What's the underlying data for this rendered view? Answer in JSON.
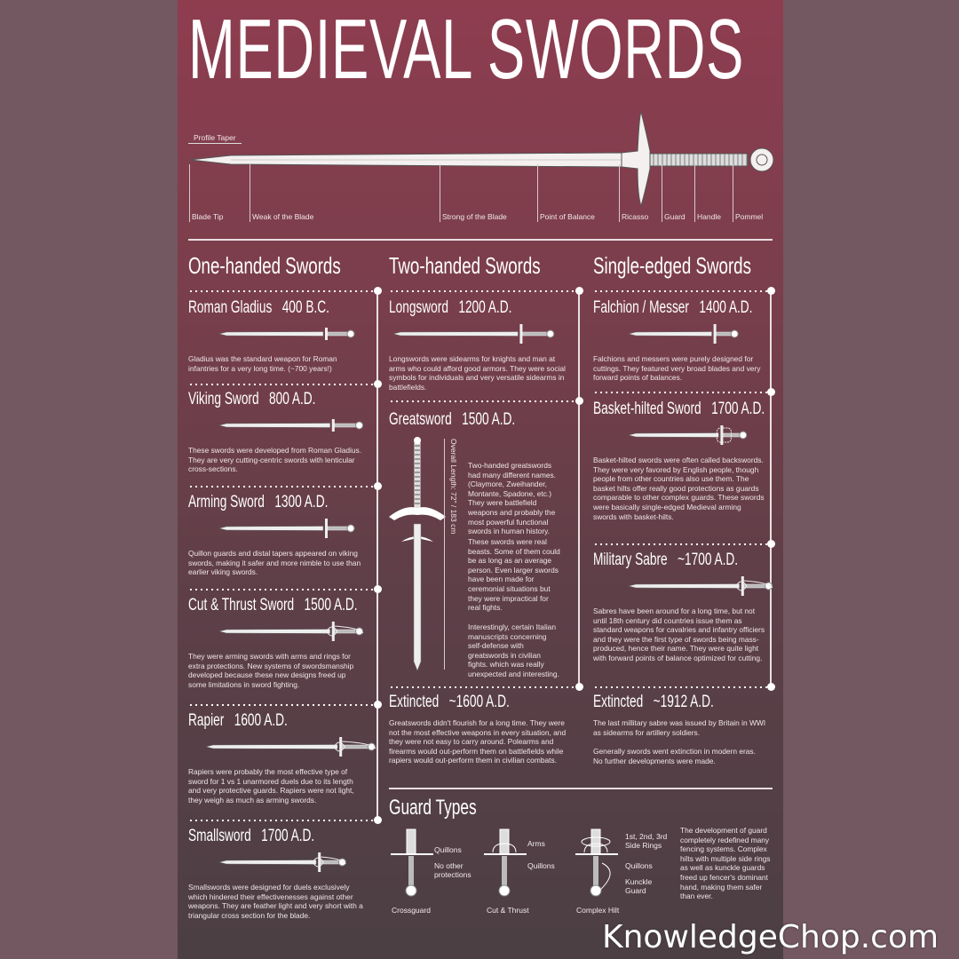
{
  "title": "MEDIEVAL SWORDS",
  "profile": {
    "taper_label": "Profile Taper",
    "parts": [
      "Blade  Tip",
      "Weak of the Blade",
      "Strong of the Blade",
      "Point of Balance",
      "Ricasso",
      "Guard",
      "Handle",
      "Pommel"
    ]
  },
  "columns": [
    {
      "heading": "One-handed Swords",
      "entries": [
        {
          "name": "Roman Gladius",
          "date": "400 B.C.",
          "desc": "Gladius was the standard weapon for Roman infantries for a very long time. (~700 years!)"
        },
        {
          "name": "Viking Sword",
          "date": "800 A.D.",
          "desc": "These swords were developed from Roman Gladius. They are very cutting-centric swords with lenticular cross-sections."
        },
        {
          "name": "Arming Sword",
          "date": "1300 A.D.",
          "desc": "Quillon guards and distal tapers appeared on viking swords, making it safer and more nimble to use than earlier viking swords."
        },
        {
          "name": "Cut & Thrust Sword",
          "date": "1500 A.D.",
          "desc": "They were arming swords with arms and rings for extra protections. New systems of swordsmanship developed because these new designs freed up some limitations in sword fighting."
        },
        {
          "name": "Rapier",
          "date": "1600 A.D.",
          "desc": "Rapiers were probably the most effective type of sword for 1 vs 1 unarmored duels due to its length and very protective guards. Rapiers were not light, they weigh as much as arming swords."
        },
        {
          "name": "Smallsword",
          "date": "1700 A.D.",
          "desc": "Smallswords were designed for duels exclusively which hindered their effectivenesses against other weapons. They are feather light and very short with a triangular cross section for the blade."
        }
      ]
    },
    {
      "heading": "Two-handed Swords",
      "entries": [
        {
          "name": "Longsword",
          "date": "1200 A.D.",
          "desc": "Longswords were sidearms for knights and man at arms who could afford good armors. They were social symbols for individuals and very versatile sidearms in battlefields."
        },
        {
          "name": "Greatsword",
          "date": "1500 A.D.",
          "desc": "Two-handed greatswords had many different names. (Claymore, Zweihander, Montante, Spadone, etc.) They were battlefield weapons and probably the most powerful functional swords in human history.",
          "desc2": "These swords were real beasts. Some of them could be as long as an average person. Even larger swords have been made for ceremonial situations but they were impractical for real fights.",
          "desc3": "Interestingly, certain Italian manuscripts concerning self-defense with greatswords in civilian fights. which was really unexpected and interesting.",
          "length": "Overall Length: 72\" / 183 cm"
        },
        {
          "name": "Extincted",
          "date": "~1600 A.D.",
          "desc": "Greatswords didn't flourish for a long time. They were not the most effective weapons in every situation, and they were not easy to carry around. Polearms and firearms would out-perform them on battlefields while rapiers would out-perform them in civilian combats."
        }
      ]
    },
    {
      "heading": "Single-edged Swords",
      "entries": [
        {
          "name": "Falchion / Messer",
          "date": "1400 A.D.",
          "desc": "Falchions and messers were purely designed for cuttings. They featured very broad blades and very forward points of balances."
        },
        {
          "name": "Basket-hilted Sword",
          "date": "1700 A.D.",
          "desc": "Basket-hilted swords were often called backswords. They were very favored by English people, though people from other countries also use them.  The basket hilts offer really good protections as guards comparable to other complex guards. These swords were basically single-edged Medieval arming swords with basket-hilts."
        },
        {
          "name": "Military Sabre",
          "date": "~1700 A.D.",
          "desc": "Sabres have been around for a long time, but not until 18th century did countries issue them as standard weapons for cavalries and infantry officiers and they were the first type of swords being mass-produced, hence their name. They were quite light with forward points of balance optimized for cutting."
        },
        {
          "name": "Extincted",
          "date": "~1912 A.D.",
          "desc": "The last millitary sabre was issued by Britain in WWI as sidearms for artillery soldiers.",
          "desc2": "Generally swords went extinction in modern eras. No further developments were made."
        }
      ]
    }
  ],
  "guards": {
    "heading": "Guard Types",
    "types": [
      {
        "name": "Crossguard",
        "labels": [
          "Quillons",
          "No other protections"
        ]
      },
      {
        "name": "Cut & Thrust",
        "labels": [
          "Arms",
          "Quillons"
        ]
      },
      {
        "name": "Complex Hilt",
        "labels": [
          "1st, 2nd, 3rd Side Rings",
          "Quillons",
          "Kunckle Guard"
        ]
      }
    ],
    "desc": "The development of guard completely redefined many fencing systems. Complex hilts with multiple side rings as well as kunckle guards freed up fencer's dominant hand, making them safer than ever."
  },
  "watermark": "KnowledgeChop.com",
  "colors": {
    "poster_top": "#8e3d4f",
    "poster_bottom": "#4b3f44",
    "background": "#735761",
    "text": "#ffffff"
  }
}
